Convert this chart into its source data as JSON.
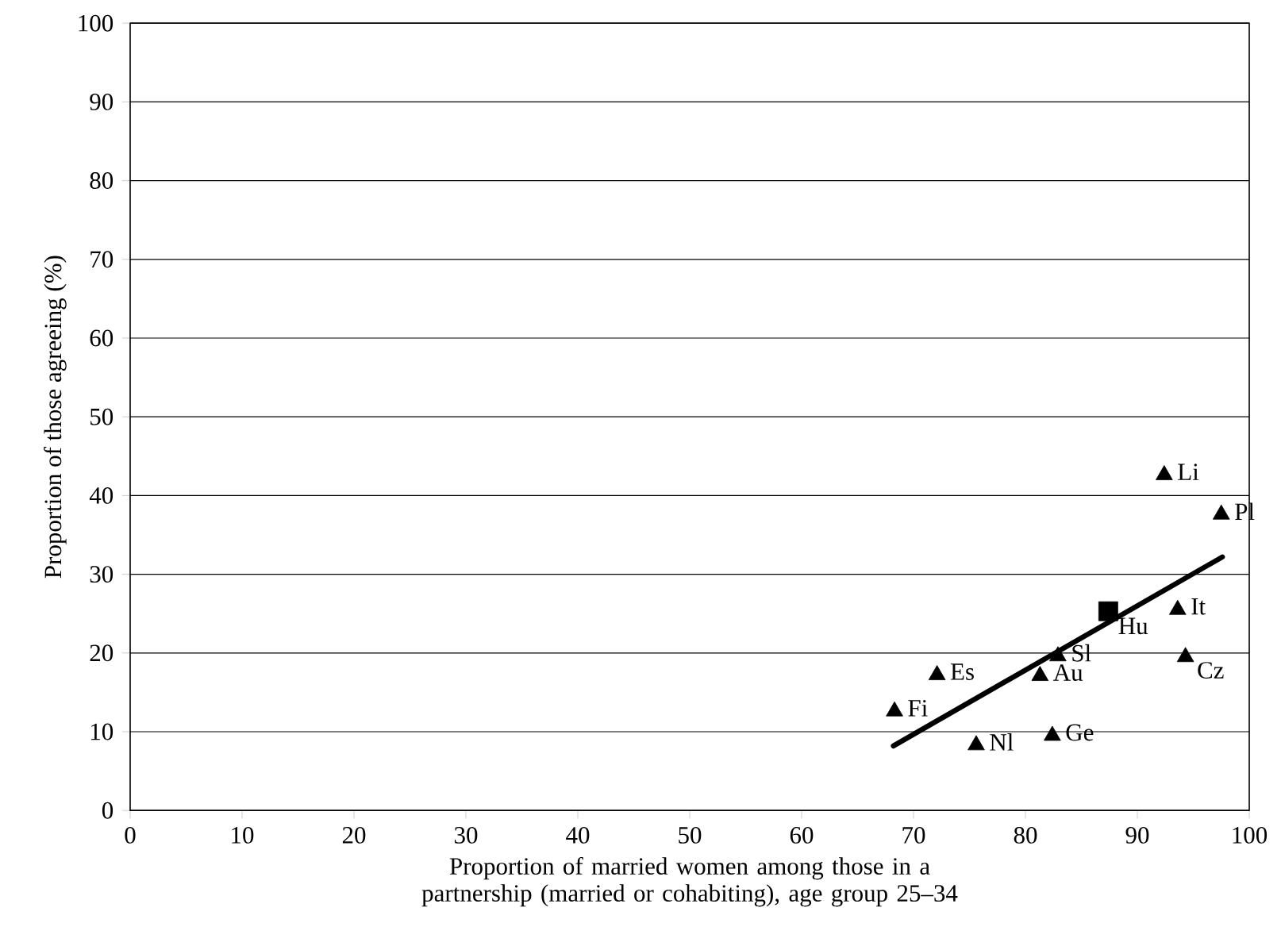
{
  "chart_data": {
    "type": "scatter",
    "xlabel": "Proportion of married women among those in a partnership (married or cohabiting), age group 25–34",
    "ylabel": "Proportion of those agreeing (%)",
    "xlim": [
      0,
      100
    ],
    "xticks": [
      0,
      10,
      20,
      30,
      40,
      50,
      60,
      70,
      80,
      90,
      100
    ],
    "ylim": [
      0,
      100
    ],
    "yticks": [
      0,
      10,
      20,
      30,
      40,
      50,
      60,
      70,
      80,
      90,
      100
    ],
    "grid": "y",
    "series": [
      {
        "marker": "triangle",
        "color": "#000000",
        "x": [
          92.4,
          97.5,
          93.6,
          94.3,
          82.9,
          72.1,
          81.3,
          68.3,
          75.6,
          82.4
        ],
        "values": [
          42.6,
          37.6,
          25.5,
          19.5,
          19.6,
          17.2,
          17.1,
          12.6,
          8.3,
          9.5
        ]
      },
      {
        "marker": "square",
        "color": "#000000",
        "x": [
          87.4
        ],
        "values": [
          25.3
        ]
      },
      {
        "type": "line",
        "marker": "none",
        "color": "#000000",
        "x": [
          68.2,
          97.6
        ],
        "values": [
          8.2,
          32.2
        ]
      }
    ],
    "annotations": [
      {
        "text": "Li",
        "x": 92.4,
        "y": 42.6
      },
      {
        "text": "Pl",
        "x": 97.5,
        "y": 37.6
      },
      {
        "text": "It",
        "x": 93.6,
        "y": 25.5
      },
      {
        "text": "Cz",
        "x": 94.3,
        "y": 19.5
      },
      {
        "text": "Sl",
        "x": 82.9,
        "y": 19.6
      },
      {
        "text": "Es",
        "x": 72.1,
        "y": 17.2
      },
      {
        "text": "Au",
        "x": 81.3,
        "y": 17.1
      },
      {
        "text": "Fi",
        "x": 68.3,
        "y": 12.6
      },
      {
        "text": "Nl",
        "x": 75.6,
        "y": 8.3
      },
      {
        "text": "Ge",
        "x": 82.4,
        "y": 9.5
      },
      {
        "text": "Hu",
        "x": 87.4,
        "y": 25.3
      }
    ]
  }
}
